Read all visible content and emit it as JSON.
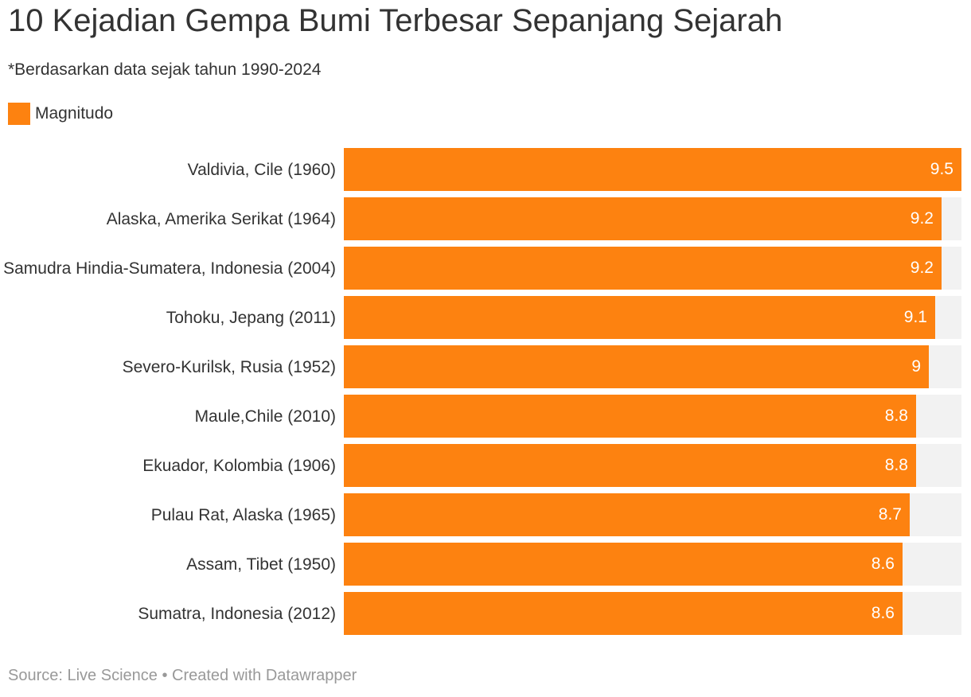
{
  "chart_data": {
    "type": "bar",
    "orientation": "horizontal",
    "title": "10 Kejadian Gempa Bumi Terbesar Sepanjang Sejarah",
    "subtitle": "*Berdasarkan data sejak tahun 1990-2024",
    "legend": "Magnitudo",
    "categories": [
      "Valdivia, Cile (1960)",
      "Alaska, Amerika Serikat (1964)",
      "Samudra Hindia-Sumatera, Indonesia (2004)",
      "Tohoku, Jepang (2011)",
      "Severo-Kurilsk, Rusia (1952)",
      "Maule,Chile (2010)",
      "Ekuador, Kolombia (1906)",
      "Pulau Rat, Alaska (1965)",
      "Assam, Tibet (1950)",
      "Sumatra, Indonesia (2012)"
    ],
    "series": [
      {
        "name": "Magnitudo",
        "values": [
          9.5,
          9.2,
          9.2,
          9.1,
          9,
          8.8,
          8.8,
          8.7,
          8.6,
          8.6
        ],
        "labels": [
          "9.5",
          "9.2",
          "9.2",
          "9.1",
          "9",
          "8.8",
          "8.8",
          "8.7",
          "8.6",
          "8.6"
        ]
      }
    ],
    "xlim": [
      0,
      9.5
    ],
    "bar_color": "#fd8210",
    "track_color": "#f2f2f2",
    "grid": false,
    "legend_position": "top-left",
    "source": "Source: Live Science • Created with Datawrapper"
  }
}
